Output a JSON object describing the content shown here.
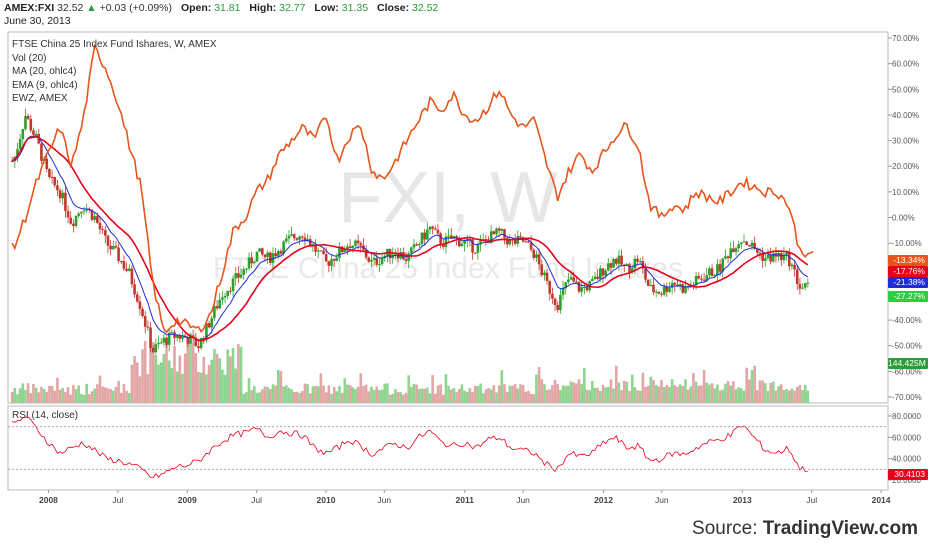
{
  "header": {
    "symbol": "AMEX:FXI",
    "price": "32.52",
    "arrow": "▲",
    "change": "+0.03 (+0.09%)",
    "open_label": "Open:",
    "open": "31.81",
    "high_label": "High:",
    "high": "32.77",
    "low_label": "Low:",
    "low": "31.35",
    "close_label": "Close:",
    "close": "32.52",
    "date": "June 30, 2013"
  },
  "legend": [
    "FTSE China 25 Index Fund Ishares, W, AMEX",
    "Vol (20)",
    "MA (20, ohlc4)",
    "EMA (9, ohlc4)",
    "EWZ, AMEX"
  ],
  "watermark": {
    "big": "FXI, W",
    "small": "FTSE China 25 Index Fund Ishares"
  },
  "rsi_label": "RSI (14, close)",
  "source": {
    "prefix": "Source: ",
    "brand": "TradingView.com"
  },
  "colors": {
    "ewz": "#e8551c",
    "ma": "#e8001c",
    "ema": "#1f2bd6",
    "up": "#2ca02c",
    "down": "#c0392b",
    "vol_up": "#8fd48f",
    "vol_down": "#e3a6a6",
    "rsi": "#e8001c",
    "axis": "#999999"
  },
  "chart_data": {
    "type": "line",
    "x_ticks": [
      "2008",
      "Jul",
      "2009",
      "Jul",
      "2010",
      "Jun",
      "2011",
      "Jun",
      "2012",
      "Jun",
      "2013",
      "Jul",
      "2014"
    ],
    "y_ticks": [
      "70.00%",
      "60.00%",
      "50.00%",
      "40.00%",
      "30.00%",
      "20.00%",
      "10.00%",
      "0.00%",
      "-10.00%",
      "-20.00%",
      "-30.00%",
      "-40.00%",
      "-50.00%",
      "-60.00%",
      "-70.00%"
    ],
    "rsi_ticks": [
      "80.0000",
      "60.0000",
      "40.0000",
      "20.0000"
    ],
    "last_values": [
      {
        "label": "-13.34%",
        "color": "#e8551c"
      },
      {
        "label": "-17.76%",
        "color": "#e8001c"
      },
      {
        "label": "-21.38%",
        "color": "#1f2bd6"
      },
      {
        "label": "-27.27%",
        "color": "#2ecc40"
      },
      {
        "label": "144.425M",
        "color": "#2a9d38"
      },
      {
        "label": "30.4103",
        "color": "#e8001c"
      }
    ],
    "series": [
      {
        "name": "EWZ, AMEX",
        "values": [
          [
            "2007-10",
            -12
          ],
          [
            "2007-11",
            0
          ],
          [
            "2007-12",
            14
          ],
          [
            "2008-01",
            25
          ],
          [
            "2008-02",
            35
          ],
          [
            "2008-03",
            20
          ],
          [
            "2008-04",
            38
          ],
          [
            "2008-05",
            66
          ],
          [
            "2008-06",
            58
          ],
          [
            "2008-07",
            45
          ],
          [
            "2008-08",
            28
          ],
          [
            "2008-09",
            12
          ],
          [
            "2008-10",
            -25
          ],
          [
            "2008-11",
            -45
          ],
          [
            "2008-12",
            -40
          ],
          [
            "2009-01",
            -42
          ],
          [
            "2009-02",
            -44
          ],
          [
            "2009-03",
            -38
          ],
          [
            "2009-04",
            -22
          ],
          [
            "2009-05",
            -5
          ],
          [
            "2009-06",
            0
          ],
          [
            "2009-07",
            10
          ],
          [
            "2009-08",
            15
          ],
          [
            "2009-09",
            25
          ],
          [
            "2009-10",
            30
          ],
          [
            "2009-11",
            35
          ],
          [
            "2009-12",
            30
          ],
          [
            "2010-01",
            40
          ],
          [
            "2010-02",
            22
          ],
          [
            "2010-03",
            32
          ],
          [
            "2010-04",
            36
          ],
          [
            "2010-05",
            18
          ],
          [
            "2010-06",
            15
          ],
          [
            "2010-07",
            22
          ],
          [
            "2010-08",
            30
          ],
          [
            "2010-09",
            38
          ],
          [
            "2010-10",
            45
          ],
          [
            "2010-11",
            42
          ],
          [
            "2010-12",
            48
          ],
          [
            "2011-01",
            40
          ],
          [
            "2011-02",
            38
          ],
          [
            "2011-03",
            43
          ],
          [
            "2011-04",
            50
          ],
          [
            "2011-05",
            40
          ],
          [
            "2011-06",
            35
          ],
          [
            "2011-07",
            38
          ],
          [
            "2011-08",
            22
          ],
          [
            "2011-09",
            8
          ],
          [
            "2011-10",
            18
          ],
          [
            "2011-11",
            25
          ],
          [
            "2011-12",
            18
          ],
          [
            "2012-01",
            25
          ],
          [
            "2012-02",
            32
          ],
          [
            "2012-03",
            36
          ],
          [
            "2012-04",
            28
          ],
          [
            "2012-05",
            5
          ],
          [
            "2012-06",
            0
          ],
          [
            "2012-07",
            5
          ],
          [
            "2012-08",
            3
          ],
          [
            "2012-09",
            10
          ],
          [
            "2012-10",
            8
          ],
          [
            "2012-11",
            6
          ],
          [
            "2012-12",
            10
          ],
          [
            "2013-01",
            14
          ],
          [
            "2013-02",
            12
          ],
          [
            "2013-03",
            10
          ],
          [
            "2013-04",
            10
          ],
          [
            "2013-05",
            5
          ],
          [
            "2013-06",
            -13.34
          ]
        ]
      },
      {
        "name": "FXI",
        "values": [
          [
            "2007-10",
            22
          ],
          [
            "2007-11",
            40
          ],
          [
            "2007-12",
            30
          ],
          [
            "2008-01",
            15
          ],
          [
            "2008-02",
            10
          ],
          [
            "2008-03",
            -2
          ],
          [
            "2008-04",
            5
          ],
          [
            "2008-05",
            0
          ],
          [
            "2008-06",
            -10
          ],
          [
            "2008-07",
            -15
          ],
          [
            "2008-08",
            -22
          ],
          [
            "2008-09",
            -35
          ],
          [
            "2008-10",
            -52
          ],
          [
            "2008-11",
            -48
          ],
          [
            "2008-12",
            -46
          ],
          [
            "2009-01",
            -47
          ],
          [
            "2009-02",
            -50
          ],
          [
            "2009-03",
            -40
          ],
          [
            "2009-04",
            -30
          ],
          [
            "2009-05",
            -25
          ],
          [
            "2009-06",
            -20
          ],
          [
            "2009-07",
            -14
          ],
          [
            "2009-08",
            -16
          ],
          [
            "2009-09",
            -12
          ],
          [
            "2009-10",
            -8
          ],
          [
            "2009-11",
            -6
          ],
          [
            "2009-12",
            -12
          ],
          [
            "2010-01",
            -18
          ],
          [
            "2010-02",
            -14
          ],
          [
            "2010-03",
            -10
          ],
          [
            "2010-04",
            -12
          ],
          [
            "2010-05",
            -18
          ],
          [
            "2010-06",
            -15
          ],
          [
            "2010-07",
            -13
          ],
          [
            "2010-08",
            -16
          ],
          [
            "2010-09",
            -10
          ],
          [
            "2010-10",
            -4
          ],
          [
            "2010-11",
            -10
          ],
          [
            "2010-12",
            -8
          ],
          [
            "2011-01",
            -10
          ],
          [
            "2011-02",
            -12
          ],
          [
            "2011-03",
            -8
          ],
          [
            "2011-04",
            -6
          ],
          [
            "2011-05",
            -10
          ],
          [
            "2011-06",
            -9
          ],
          [
            "2011-07",
            -14
          ],
          [
            "2011-08",
            -25
          ],
          [
            "2011-09",
            -34
          ],
          [
            "2011-10",
            -24
          ],
          [
            "2011-11",
            -28
          ],
          [
            "2011-12",
            -26
          ],
          [
            "2012-01",
            -20
          ],
          [
            "2012-02",
            -16
          ],
          [
            "2012-03",
            -20
          ],
          [
            "2012-04",
            -16
          ],
          [
            "2012-05",
            -28
          ],
          [
            "2012-06",
            -29
          ],
          [
            "2012-07",
            -25
          ],
          [
            "2012-08",
            -28
          ],
          [
            "2012-09",
            -25
          ],
          [
            "2012-10",
            -22
          ],
          [
            "2012-11",
            -20
          ],
          [
            "2012-12",
            -12
          ],
          [
            "2013-01",
            -8
          ],
          [
            "2013-02",
            -12
          ],
          [
            "2013-03",
            -16
          ],
          [
            "2013-04",
            -15
          ],
          [
            "2013-05",
            -16
          ],
          [
            "2013-06",
            -27.27
          ]
        ]
      },
      {
        "name": "RSI (14, close)",
        "values": [
          [
            "2007-10",
            72
          ],
          [
            "2007-11",
            80
          ],
          [
            "2007-12",
            68
          ],
          [
            "2008-01",
            55
          ],
          [
            "2008-02",
            45
          ],
          [
            "2008-03",
            50
          ],
          [
            "2008-04",
            55
          ],
          [
            "2008-05",
            48
          ],
          [
            "2008-06",
            40
          ],
          [
            "2008-07",
            38
          ],
          [
            "2008-08",
            35
          ],
          [
            "2008-09",
            30
          ],
          [
            "2008-10",
            22
          ],
          [
            "2008-11",
            26
          ],
          [
            "2008-12",
            32
          ],
          [
            "2009-01",
            34
          ],
          [
            "2009-02",
            38
          ],
          [
            "2009-03",
            48
          ],
          [
            "2009-04",
            56
          ],
          [
            "2009-05",
            62
          ],
          [
            "2009-06",
            64
          ],
          [
            "2009-07",
            68
          ],
          [
            "2009-08",
            60
          ],
          [
            "2009-09",
            66
          ],
          [
            "2009-10",
            64
          ],
          [
            "2009-11",
            62
          ],
          [
            "2009-12",
            50
          ],
          [
            "2010-01",
            45
          ],
          [
            "2010-02",
            50
          ],
          [
            "2010-03",
            58
          ],
          [
            "2010-04",
            52
          ],
          [
            "2010-05",
            44
          ],
          [
            "2010-06",
            50
          ],
          [
            "2010-07",
            54
          ],
          [
            "2010-08",
            50
          ],
          [
            "2010-09",
            60
          ],
          [
            "2010-10",
            66
          ],
          [
            "2010-11",
            55
          ],
          [
            "2010-12",
            52
          ],
          [
            "2011-01",
            55
          ],
          [
            "2011-02",
            50
          ],
          [
            "2011-03",
            58
          ],
          [
            "2011-04",
            60
          ],
          [
            "2011-05",
            50
          ],
          [
            "2011-06",
            48
          ],
          [
            "2011-07",
            45
          ],
          [
            "2011-08",
            35
          ],
          [
            "2011-09",
            30
          ],
          [
            "2011-10",
            45
          ],
          [
            "2011-11",
            42
          ],
          [
            "2011-12",
            45
          ],
          [
            "2012-01",
            55
          ],
          [
            "2012-02",
            60
          ],
          [
            "2012-03",
            50
          ],
          [
            "2012-04",
            52
          ],
          [
            "2012-05",
            38
          ],
          [
            "2012-06",
            40
          ],
          [
            "2012-07",
            45
          ],
          [
            "2012-08",
            44
          ],
          [
            "2012-09",
            50
          ],
          [
            "2012-10",
            55
          ],
          [
            "2012-11",
            58
          ],
          [
            "2012-12",
            62
          ],
          [
            "2013-01",
            72
          ],
          [
            "2013-02",
            60
          ],
          [
            "2013-03",
            48
          ],
          [
            "2013-04",
            45
          ],
          [
            "2013-05",
            50
          ],
          [
            "2013-06",
            30.41
          ]
        ]
      }
    ]
  }
}
